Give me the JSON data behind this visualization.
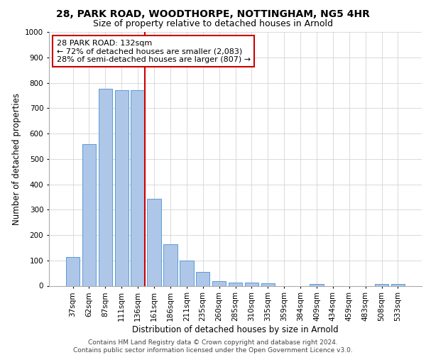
{
  "title_line1": "28, PARK ROAD, WOODTHORPE, NOTTINGHAM, NG5 4HR",
  "title_line2": "Size of property relative to detached houses in Arnold",
  "xlabel": "Distribution of detached houses by size in Arnold",
  "ylabel": "Number of detached properties",
  "categories": [
    "37sqm",
    "62sqm",
    "87sqm",
    "111sqm",
    "136sqm",
    "161sqm",
    "186sqm",
    "211sqm",
    "235sqm",
    "260sqm",
    "285sqm",
    "310sqm",
    "335sqm",
    "359sqm",
    "384sqm",
    "409sqm",
    "434sqm",
    "459sqm",
    "483sqm",
    "508sqm",
    "533sqm"
  ],
  "values": [
    112,
    558,
    775,
    770,
    770,
    342,
    165,
    98,
    55,
    18,
    13,
    13,
    10,
    0,
    0,
    8,
    0,
    0,
    0,
    8,
    8
  ],
  "bar_color": "#aec6e8",
  "bar_edgecolor": "#5b9bd5",
  "vline_idx": 4,
  "vline_color": "#cc0000",
  "annotation_text": "28 PARK ROAD: 132sqm\n← 72% of detached houses are smaller (2,083)\n28% of semi-detached houses are larger (807) →",
  "annotation_box_color": "#ffffff",
  "annotation_box_edgecolor": "#cc0000",
  "ylim": [
    0,
    1000
  ],
  "yticks": [
    0,
    100,
    200,
    300,
    400,
    500,
    600,
    700,
    800,
    900,
    1000
  ],
  "background_color": "#ffffff",
  "grid_color": "#cccccc",
  "footer_text": "Contains HM Land Registry data © Crown copyright and database right 2024.\nContains public sector information licensed under the Open Government Licence v3.0.",
  "title_fontsize": 10,
  "subtitle_fontsize": 9,
  "axis_label_fontsize": 8.5,
  "tick_fontsize": 7.5,
  "annotation_fontsize": 8,
  "footer_fontsize": 6.5
}
